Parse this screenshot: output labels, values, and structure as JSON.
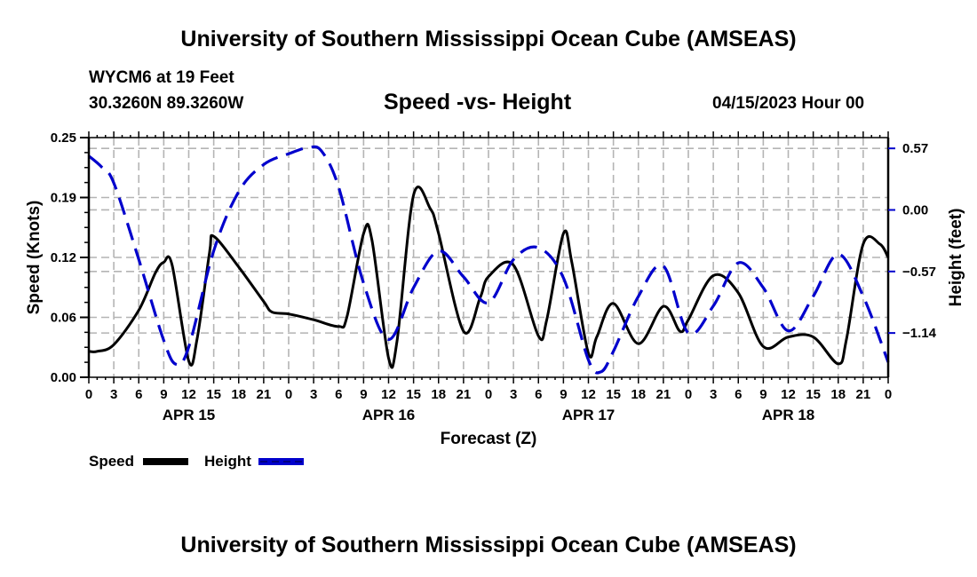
{
  "header": {
    "title": "University of Southern Mississippi Ocean Cube (AMSEAS)",
    "station": "WYCM6 at 19 Feet",
    "coordinates": "30.3260N  89.3260W",
    "subtitle": "Speed -vs- Height",
    "datetime": "04/15/2023 Hour 00"
  },
  "footer": {
    "title": "University of Southern Mississippi Ocean Cube (AMSEAS)"
  },
  "colors": {
    "speed": "#000000",
    "height": "#0000cc",
    "grid": "#b4b4b4"
  },
  "chart_data": {
    "type": "line",
    "title": "Speed -vs- Height",
    "xlabel": "Forecast (Z)",
    "ylabel": "Speed (Knots)",
    "y2label": "Height (feet)",
    "xlim": [
      0,
      96
    ],
    "ylim": [
      0,
      0.25
    ],
    "y2lim": [
      -1.55,
      0.67
    ],
    "x_tick_labels": [
      "0",
      "3",
      "6",
      "9",
      "12",
      "15",
      "18",
      "21",
      "0",
      "3",
      "6",
      "9",
      "12",
      "15",
      "18",
      "21",
      "0",
      "3",
      "6",
      "9",
      "12",
      "15",
      "18",
      "21",
      "0",
      "3",
      "6",
      "9",
      "12",
      "15",
      "18",
      "21",
      "0"
    ],
    "x_tick_hours": [
      0,
      3,
      6,
      9,
      12,
      15,
      18,
      21,
      24,
      27,
      30,
      33,
      36,
      39,
      42,
      45,
      48,
      51,
      54,
      57,
      60,
      63,
      66,
      69,
      72,
      75,
      78,
      81,
      84,
      87,
      90,
      93,
      96
    ],
    "date_labels": [
      {
        "label": "APR 15",
        "hour": 12
      },
      {
        "label": "APR 16",
        "hour": 36
      },
      {
        "label": "APR 17",
        "hour": 60
      },
      {
        "label": "APR 18",
        "hour": 84
      }
    ],
    "y_ticks": [
      {
        "value": 0.0,
        "label": "0.00"
      },
      {
        "value": 0.0625,
        "label": "0.06"
      },
      {
        "value": 0.125,
        "label": "0.12"
      },
      {
        "value": 0.1875,
        "label": "0.19"
      },
      {
        "value": 0.25,
        "label": "0.25"
      }
    ],
    "y2_ticks": [
      {
        "value": 0.57,
        "label": "0.57"
      },
      {
        "value": 0.0,
        "label": "0.00"
      },
      {
        "value": -0.57,
        "label": "−0.57"
      },
      {
        "value": -1.14,
        "label": "−1.14"
      }
    ],
    "grid": true,
    "legend": {
      "placement": "bottom-left",
      "entries": [
        {
          "name": "Speed",
          "style": "solid"
        },
        {
          "name": "Height",
          "style": "dashed"
        }
      ]
    },
    "series": [
      {
        "name": "Speed",
        "axis": "left",
        "style": "solid",
        "x": [
          0,
          1,
          3,
          6,
          8,
          9,
          10,
          12,
          13,
          14.5,
          15,
          18,
          21,
          22,
          24,
          27,
          30,
          31,
          33,
          34,
          36,
          37,
          39,
          41,
          42,
          45,
          47,
          48,
          51,
          54,
          55,
          57,
          58,
          60,
          61,
          63,
          66,
          69,
          71,
          72,
          75,
          78,
          81,
          84,
          87,
          90,
          91,
          93,
          95,
          96
        ],
        "values": [
          0.027,
          0.027,
          0.034,
          0.07,
          0.109,
          0.12,
          0.117,
          0.017,
          0.04,
          0.13,
          0.147,
          0.115,
          0.079,
          0.068,
          0.066,
          0.06,
          0.053,
          0.063,
          0.15,
          0.143,
          0.02,
          0.037,
          0.19,
          0.176,
          0.15,
          0.048,
          0.083,
          0.105,
          0.117,
          0.043,
          0.06,
          0.15,
          0.12,
          0.025,
          0.042,
          0.077,
          0.035,
          0.074,
          0.048,
          0.06,
          0.106,
          0.088,
          0.032,
          0.042,
          0.042,
          0.014,
          0.04,
          0.139,
          0.139,
          0.125
        ]
      },
      {
        "name": "Height",
        "axis": "right",
        "style": "dashed",
        "x": [
          0,
          1.5,
          3,
          6,
          9,
          10.5,
          12,
          15,
          18,
          21,
          24,
          26.5,
          28,
          30,
          33,
          36,
          39,
          42,
          45,
          48,
          51,
          54,
          57,
          60,
          61.5,
          63,
          66,
          69,
          72,
          75,
          78,
          81,
          84,
          87,
          90,
          93,
          96
        ],
        "values": [
          0.5,
          0.4,
          0.25,
          -0.46,
          -1.21,
          -1.43,
          -1.27,
          -0.38,
          0.17,
          0.42,
          0.52,
          0.58,
          0.54,
          0.21,
          -0.68,
          -1.2,
          -0.72,
          -0.38,
          -0.62,
          -0.86,
          -0.46,
          -0.35,
          -0.63,
          -1.39,
          -1.5,
          -1.31,
          -0.8,
          -0.52,
          -1.14,
          -0.89,
          -0.49,
          -0.72,
          -1.12,
          -0.8,
          -0.41,
          -0.8,
          -1.41
        ]
      }
    ]
  }
}
